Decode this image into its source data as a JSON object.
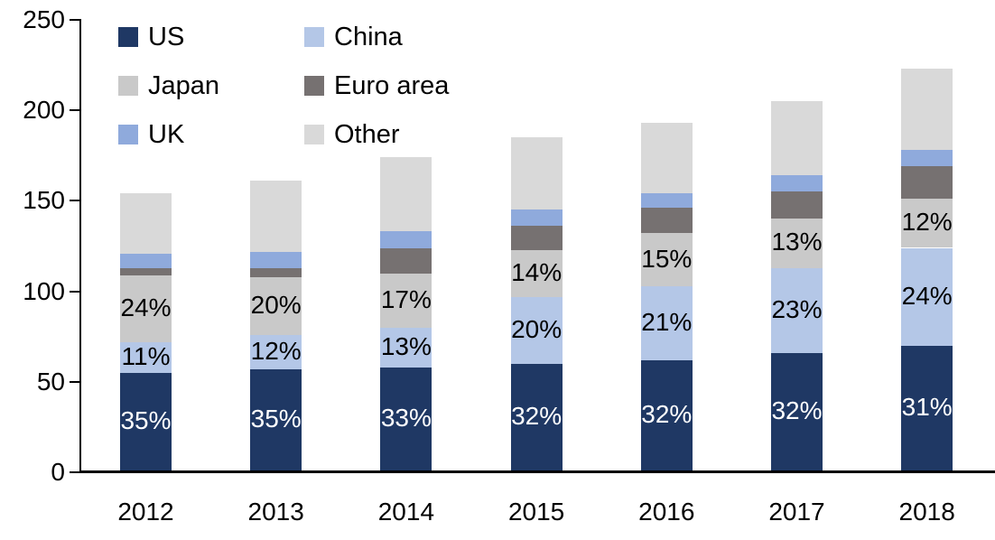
{
  "chart_data": {
    "type": "bar",
    "stacked": true,
    "title": "",
    "xlabel": "",
    "ylabel": "",
    "categories": [
      "2012",
      "2013",
      "2014",
      "2015",
      "2016",
      "2017",
      "2018"
    ],
    "series": [
      {
        "name": "US",
        "color": "#1f3864",
        "values": [
          54,
          56,
          57,
          59,
          61,
          65,
          69
        ],
        "labels": [
          "35%",
          "35%",
          "33%",
          "32%",
          "32%",
          "32%",
          "31%"
        ],
        "label_color": "#ffffff"
      },
      {
        "name": "China",
        "color": "#b4c7e7",
        "values": [
          17,
          19,
          22,
          37,
          41,
          47,
          54
        ],
        "labels": [
          "11%",
          "12%",
          "13%",
          "20%",
          "21%",
          "23%",
          "24%"
        ],
        "label_color": "#000000"
      },
      {
        "name": "Japan",
        "color": "#c9c9c9",
        "values": [
          37,
          32,
          30,
          26,
          29,
          27,
          27
        ],
        "labels": [
          "24%",
          "20%",
          "17%",
          "14%",
          "15%",
          "13%",
          "12%"
        ],
        "label_color": "#000000"
      },
      {
        "name": "Euro area",
        "color": "#767171",
        "values": [
          4,
          5,
          14,
          13,
          14,
          15,
          18
        ]
      },
      {
        "name": "UK",
        "color": "#8faadc",
        "values": [
          8,
          9,
          9,
          9,
          8,
          9,
          9
        ]
      },
      {
        "name": "Other",
        "color": "#d9d9d9",
        "values": [
          33,
          39,
          41,
          40,
          39,
          41,
          45
        ]
      }
    ],
    "totals": [
      153,
      160,
      173,
      184,
      192,
      204,
      222
    ],
    "ylim": [
      0,
      250
    ],
    "yticks": [
      "0",
      "50",
      "100",
      "150",
      "200",
      "250"
    ],
    "grid": false,
    "legend_position": "top-left",
    "legend_rows": [
      [
        "US",
        "China"
      ],
      [
        "Japan",
        "Euro area"
      ],
      [
        "UK",
        "Other"
      ]
    ],
    "axis_color": "#000000"
  }
}
